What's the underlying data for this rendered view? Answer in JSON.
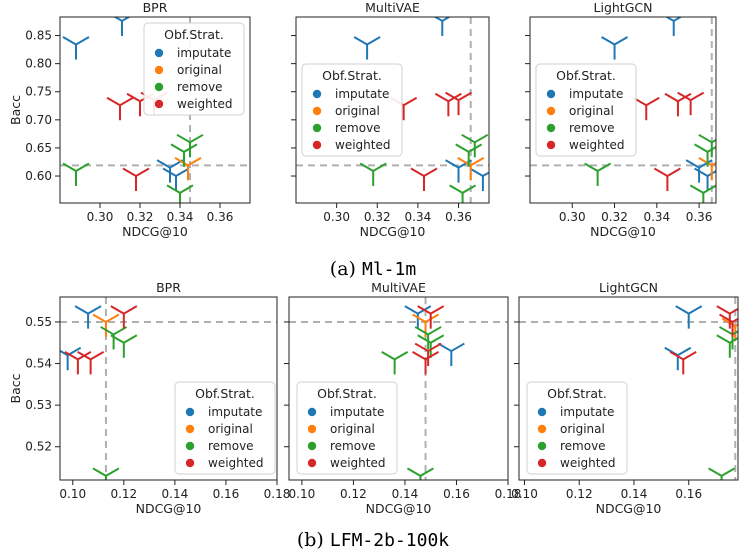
{
  "figure": {
    "caption_a_prefix": "(a)",
    "caption_a_name": "Ml-1m",
    "caption_b_prefix": "(b)",
    "caption_b_name": "LFM-2b-100k"
  },
  "colors": {
    "imputate": "#1f77b4",
    "original": "#ff7f0e",
    "remove": "#2ca02c",
    "weighted": "#d62728",
    "reference_line": "#b0b0b0"
  },
  "chart_data": [
    {
      "type": "scatter",
      "row": 0,
      "col": 0,
      "title": "BPR",
      "xlabel": "NDCG@10",
      "ylabel": "Bacc",
      "xlim": [
        0.28,
        0.375
      ],
      "ylim": [
        0.552,
        0.883
      ],
      "xticks": [
        0.3,
        0.32,
        0.34,
        0.36
      ],
      "yticks": [
        0.6,
        0.65,
        0.7,
        0.75,
        0.8,
        0.85
      ],
      "xtick_labels": [
        "0.30",
        "0.32",
        "0.34",
        "0.36"
      ],
      "ytick_labels": [
        "0.60",
        "0.65",
        "0.70",
        "0.75",
        "0.80",
        "0.85"
      ],
      "show_yticklabels": true,
      "show_xlabel": true,
      "show_ylabel": true,
      "ref_x": 0.345,
      "ref_y": 0.619,
      "legend_title": "Obf.Strat.",
      "legend_position": "upper-right",
      "series": [
        {
          "name": "imputate",
          "x": [
            0.288,
            0.311,
            0.335,
            0.338
          ],
          "y": [
            0.834,
            0.876,
            0.615,
            0.6
          ]
        },
        {
          "name": "original",
          "x": [
            0.344
          ],
          "y": [
            0.619
          ]
        },
        {
          "name": "remove",
          "x": [
            0.288,
            0.34,
            0.342,
            0.345
          ],
          "y": [
            0.609,
            0.57,
            0.643,
            0.66
          ]
        },
        {
          "name": "weighted",
          "x": [
            0.31,
            0.318,
            0.32,
            0.327
          ],
          "y": [
            0.726,
            0.6,
            0.733,
            0.735
          ]
        }
      ]
    },
    {
      "type": "scatter",
      "row": 0,
      "col": 1,
      "title": "MultiVAE",
      "xlabel": "NDCG@10",
      "ylabel": "",
      "xlim": [
        0.28,
        0.375
      ],
      "ylim": [
        0.552,
        0.883
      ],
      "xticks": [
        0.3,
        0.32,
        0.34,
        0.36
      ],
      "yticks": [
        0.6,
        0.65,
        0.7,
        0.75,
        0.8,
        0.85
      ],
      "xtick_labels": [
        "0.30",
        "0.32",
        "0.34",
        "0.36"
      ],
      "ytick_labels": [
        "0.60",
        "0.65",
        "0.70",
        "0.75",
        "0.80",
        "0.85"
      ],
      "show_yticklabels": false,
      "show_xlabel": true,
      "show_ylabel": false,
      "ref_x": 0.366,
      "ref_y": 0.619,
      "legend_title": "Obf.Strat.",
      "legend_position": "center-left",
      "series": [
        {
          "name": "imputate",
          "x": [
            0.315,
            0.352,
            0.36,
            0.372
          ],
          "y": [
            0.834,
            0.876,
            0.615,
            0.6
          ]
        },
        {
          "name": "original",
          "x": [
            0.366
          ],
          "y": [
            0.619
          ]
        },
        {
          "name": "remove",
          "x": [
            0.318,
            0.362,
            0.365,
            0.368
          ],
          "y": [
            0.609,
            0.57,
            0.643,
            0.66
          ]
        },
        {
          "name": "weighted",
          "x": [
            0.333,
            0.343,
            0.355,
            0.36
          ],
          "y": [
            0.726,
            0.6,
            0.733,
            0.735
          ]
        }
      ]
    },
    {
      "type": "scatter",
      "row": 0,
      "col": 2,
      "title": "LightGCN",
      "xlabel": "NDCG@10",
      "ylabel": "",
      "xlim": [
        0.28,
        0.368
      ],
      "ylim": [
        0.552,
        0.883
      ],
      "xticks": [
        0.3,
        0.32,
        0.34,
        0.36
      ],
      "yticks": [
        0.6,
        0.65,
        0.7,
        0.75,
        0.8,
        0.85
      ],
      "xtick_labels": [
        "0.30",
        "0.32",
        "0.34",
        "0.36"
      ],
      "ytick_labels": [
        "0.60",
        "0.65",
        "0.70",
        "0.75",
        "0.80",
        "0.85"
      ],
      "show_yticklabels": false,
      "show_xlabel": true,
      "show_ylabel": false,
      "ref_x": 0.366,
      "ref_y": 0.619,
      "legend_title": "Obf.Strat.",
      "legend_position": "center-left",
      "series": [
        {
          "name": "imputate",
          "x": [
            0.32,
            0.348,
            0.36,
            0.364
          ],
          "y": [
            0.834,
            0.876,
            0.615,
            0.6
          ]
        },
        {
          "name": "original",
          "x": [
            0.366
          ],
          "y": [
            0.619
          ]
        },
        {
          "name": "remove",
          "x": [
            0.312,
            0.362,
            0.364,
            0.366
          ],
          "y": [
            0.609,
            0.57,
            0.643,
            0.66
          ]
        },
        {
          "name": "weighted",
          "x": [
            0.335,
            0.345,
            0.35,
            0.356
          ],
          "y": [
            0.726,
            0.6,
            0.733,
            0.735
          ]
        }
      ]
    },
    {
      "type": "scatter",
      "row": 1,
      "col": 0,
      "title": "BPR",
      "xlabel": "NDCG@10",
      "ylabel": "Bacc",
      "xlim": [
        0.095,
        0.18
      ],
      "ylim": [
        0.512,
        0.556
      ],
      "xticks": [
        0.1,
        0.12,
        0.14,
        0.16,
        0.18
      ],
      "yticks": [
        0.52,
        0.53,
        0.54,
        0.55
      ],
      "xtick_labels": [
        "0.10",
        "0.12",
        "0.14",
        "0.16",
        "0.18"
      ],
      "ytick_labels": [
        "0.52",
        "0.53",
        "0.54",
        "0.55"
      ],
      "show_yticklabels": true,
      "show_xlabel": true,
      "show_ylabel": true,
      "ref_x": 0.113,
      "ref_y": 0.55,
      "legend_title": "Obf.Strat.",
      "legend_position": "lower-right",
      "series": [
        {
          "name": "imputate",
          "x": [
            0.098,
            0.106
          ],
          "y": [
            0.542,
            0.552
          ]
        },
        {
          "name": "original",
          "x": [
            0.113
          ],
          "y": [
            0.55
          ]
        },
        {
          "name": "remove",
          "x": [
            0.113,
            0.116,
            0.12
          ],
          "y": [
            0.513,
            0.547,
            0.545
          ]
        },
        {
          "name": "weighted",
          "x": [
            0.102,
            0.107,
            0.12
          ],
          "y": [
            0.541,
            0.541,
            0.552
          ]
        }
      ]
    },
    {
      "type": "scatter",
      "row": 1,
      "col": 1,
      "title": "MultiVAE",
      "xlabel": "NDCG@10",
      "ylabel": "",
      "xlim": [
        0.095,
        0.18
      ],
      "ylim": [
        0.512,
        0.556
      ],
      "xticks": [
        0.1,
        0.12,
        0.14,
        0.16,
        0.18
      ],
      "yticks": [
        0.52,
        0.53,
        0.54,
        0.55
      ],
      "xtick_labels": [
        "0.10",
        "0.12",
        "0.14",
        "0.16",
        "0.18"
      ],
      "ytick_labels": [
        "0.52",
        "0.53",
        "0.54",
        "0.55"
      ],
      "show_yticklabels": false,
      "show_xlabel": true,
      "show_ylabel": false,
      "ref_x": 0.148,
      "ref_y": 0.55,
      "legend_title": "Obf.Strat.",
      "legend_position": "lower-left",
      "series": [
        {
          "name": "imputate",
          "x": [
            0.145,
            0.158
          ],
          "y": [
            0.552,
            0.543
          ]
        },
        {
          "name": "original",
          "x": [
            0.148
          ],
          "y": [
            0.55
          ]
        },
        {
          "name": "remove",
          "x": [
            0.136,
            0.146,
            0.149,
            0.15
          ],
          "y": [
            0.541,
            0.513,
            0.547,
            0.545
          ]
        },
        {
          "name": "weighted",
          "x": [
            0.148,
            0.149,
            0.15
          ],
          "y": [
            0.541,
            0.543,
            0.552
          ]
        }
      ]
    },
    {
      "type": "scatter",
      "row": 1,
      "col": 2,
      "title": "LightGCN",
      "xlabel": "NDCG@10",
      "ylabel": "",
      "xlim": [
        0.098,
        0.178
      ],
      "ylim": [
        0.512,
        0.556
      ],
      "xticks": [
        0.1,
        0.12,
        0.14,
        0.16
      ],
      "yticks": [
        0.52,
        0.53,
        0.54,
        0.55
      ],
      "xtick_labels": [
        "0.10",
        "0.12",
        "0.14",
        "0.16"
      ],
      "ytick_labels": [
        "0.52",
        "0.53",
        "0.54",
        "0.55"
      ],
      "show_yticklabels": false,
      "show_xlabel": true,
      "show_ylabel": false,
      "ref_x": 0.177,
      "ref_y": 0.55,
      "legend_title": "Obf.Strat.",
      "legend_position": "lower-left",
      "series": [
        {
          "name": "imputate",
          "x": [
            0.156,
            0.16
          ],
          "y": [
            0.542,
            0.552
          ]
        },
        {
          "name": "original",
          "x": [
            0.177
          ],
          "y": [
            0.549
          ]
        },
        {
          "name": "remove",
          "x": [
            0.172,
            0.175,
            0.176
          ],
          "y": [
            0.513,
            0.545,
            0.547
          ]
        },
        {
          "name": "weighted",
          "x": [
            0.158,
            0.175,
            0.176
          ],
          "y": [
            0.541,
            0.552,
            0.55
          ]
        }
      ]
    }
  ]
}
